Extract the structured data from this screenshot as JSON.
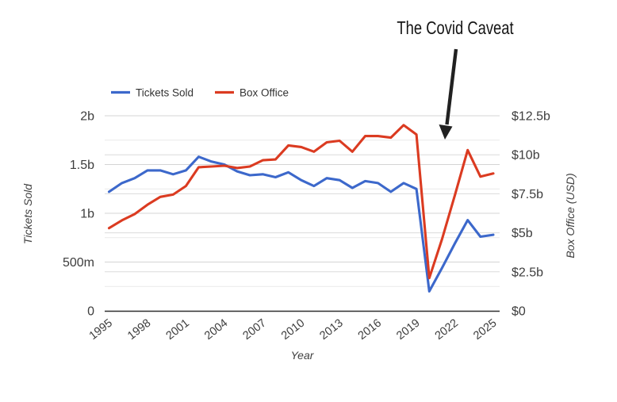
{
  "annotation": {
    "label": "The Covid Caveat",
    "points_at_year": 2020
  },
  "legend": {
    "items": [
      {
        "label": "Tickets Sold",
        "color": "#3c68cb"
      },
      {
        "label": "Box Office",
        "color": "#db3b21"
      }
    ]
  },
  "axes": {
    "left": {
      "title": "Tickets Sold",
      "ticks": [
        {
          "label": "2b",
          "value": 2
        },
        {
          "label": "1.5b",
          "value": 1.5
        },
        {
          "label": "1b",
          "value": 1
        },
        {
          "label": "500m",
          "value": 0.5
        },
        {
          "label": "0",
          "value": 0
        }
      ]
    },
    "right": {
      "title": "Box Office (USD)",
      "ticks": [
        {
          "label": "$12.5b",
          "value": 12.5
        },
        {
          "label": "$10b",
          "value": 10
        },
        {
          "label": "$7.5b",
          "value": 7.5
        },
        {
          "label": "$5b",
          "value": 5
        },
        {
          "label": "$2.5b",
          "value": 2.5
        },
        {
          "label": "$0",
          "value": 0
        }
      ]
    },
    "x": {
      "title": "Year",
      "tick_labels": [
        "1995",
        "1998",
        "2001",
        "2004",
        "2007",
        "2010",
        "2013",
        "2016",
        "2019",
        "2022",
        "2025"
      ]
    }
  },
  "chart_data": {
    "type": "line",
    "title": "The Covid Caveat",
    "xlabel": "Year",
    "ylabel_left": "Tickets Sold",
    "ylabel_right": "Box Office (USD)",
    "x": [
      1995,
      1996,
      1997,
      1998,
      1999,
      2000,
      2001,
      2002,
      2003,
      2004,
      2005,
      2006,
      2007,
      2008,
      2009,
      2010,
      2011,
      2012,
      2013,
      2014,
      2015,
      2016,
      2017,
      2018,
      2019,
      2020,
      2021,
      2022,
      2023,
      2024,
      2025
    ],
    "series": [
      {
        "name": "Tickets Sold",
        "axis": "left",
        "color": "#3c68cb",
        "unit": "billion tickets",
        "values": [
          1.22,
          1.31,
          1.36,
          1.44,
          1.44,
          1.4,
          1.44,
          1.58,
          1.53,
          1.5,
          1.43,
          1.39,
          1.4,
          1.37,
          1.42,
          1.34,
          1.28,
          1.36,
          1.34,
          1.26,
          1.33,
          1.31,
          1.22,
          1.31,
          1.25,
          0.2,
          0.44,
          0.69,
          0.93,
          0.76,
          0.78
        ]
      },
      {
        "name": "Box Office",
        "axis": "right",
        "color": "#db3b21",
        "unit": "USD billions",
        "values": [
          5.3,
          5.8,
          6.2,
          6.8,
          7.3,
          7.45,
          8.0,
          9.2,
          9.25,
          9.3,
          9.15,
          9.25,
          9.65,
          9.7,
          10.6,
          10.5,
          10.2,
          10.8,
          10.9,
          10.2,
          11.2,
          11.2,
          11.1,
          11.9,
          11.3,
          2.1,
          4.6,
          7.4,
          10.3,
          8.6,
          8.8
        ]
      }
    ],
    "axis_ranges": {
      "left": [
        0,
        2.0
      ],
      "right": [
        0,
        12.5
      ]
    },
    "grid": true,
    "legend_position": "top"
  }
}
